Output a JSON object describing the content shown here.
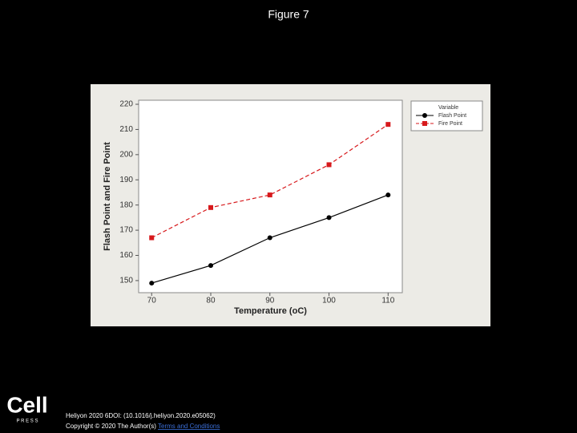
{
  "slide": {
    "title": "Figure 7"
  },
  "footer": {
    "logo": "Cell",
    "logo_sub": "P R E S S",
    "citation": "Heliyon 2020 6DOI: (10.1016/j.heliyon.2020.e05062)",
    "copyright": "Copyright © 2020 The Author(s)",
    "link": "Terms and Conditions"
  },
  "chart_data": {
    "type": "line",
    "x_label": "Temperature (oC)",
    "y_label": "Flash Point and Fire Point",
    "x": [
      70,
      80,
      90,
      100,
      110
    ],
    "series": [
      {
        "name": "Flash Point",
        "color": "#000000",
        "marker": "circle",
        "dash": "solid",
        "values": [
          149,
          156,
          167,
          175,
          184
        ]
      },
      {
        "name": "Fire Point",
        "color": "#d7191c",
        "marker": "square",
        "dash": "dashed",
        "values": [
          167,
          179,
          184,
          196,
          212
        ]
      }
    ],
    "xlim": [
      67.8,
      112.4
    ],
    "ylim": [
      145.2,
      221.6
    ],
    "xticks": [
      70,
      80,
      90,
      100,
      110
    ],
    "yticks": [
      150,
      160,
      170,
      180,
      190,
      200,
      210,
      220
    ],
    "legend_title": "Variable",
    "legend": "right",
    "grid": false
  }
}
